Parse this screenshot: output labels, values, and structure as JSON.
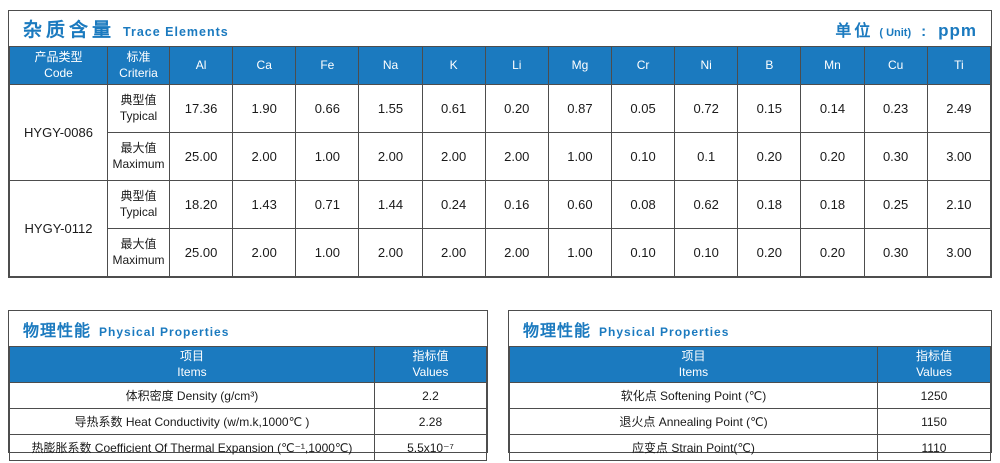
{
  "colors": {
    "header_blue": "#1b7abf",
    "title_blue": "#1b7abf",
    "border_gray": "#4d4d4d"
  },
  "trace_elements": {
    "title_zh": "杂质含量",
    "title_en": "Trace Elements",
    "unit_zh": "单位",
    "unit_en": "( Unit)",
    "unit_colon": ":",
    "unit_value": "ppm",
    "code_header_zh": "产品类型",
    "code_header_en": "Code",
    "criteria_header_zh": "标准",
    "criteria_header_en": "Criteria",
    "elements": [
      "Al",
      "Ca",
      "Fe",
      "Na",
      "K",
      "Li",
      "Mg",
      "Cr",
      "Ni",
      "B",
      "Mn",
      "Cu",
      "Ti"
    ],
    "codes": [
      "HYGY-0086",
      "HYGY-0112"
    ],
    "rows": [
      {
        "criteria_zh": "典型值",
        "criteria_en": "Typical",
        "values": [
          "17.36",
          "1.90",
          "0.66",
          "1.55",
          "0.61",
          "0.20",
          "0.87",
          "0.05",
          "0.72",
          "0.15",
          "0.14",
          "0.23",
          "2.49"
        ]
      },
      {
        "criteria_zh": "最大值",
        "criteria_en": "Maximum",
        "values": [
          "25.00",
          "2.00",
          "1.00",
          "2.00",
          "2.00",
          "2.00",
          "1.00",
          "0.10",
          "0.1",
          "0.20",
          "0.20",
          "0.30",
          "3.00"
        ]
      },
      {
        "criteria_zh": "典型值",
        "criteria_en": "Typical",
        "values": [
          "18.20",
          "1.43",
          "0.71",
          "1.44",
          "0.24",
          "0.16",
          "0.60",
          "0.08",
          "0.62",
          "0.18",
          "0.18",
          "0.25",
          "2.10"
        ]
      },
      {
        "criteria_zh": "最大值",
        "criteria_en": "Maximum",
        "values": [
          "25.00",
          "2.00",
          "1.00",
          "2.00",
          "2.00",
          "2.00",
          "1.00",
          "0.10",
          "0.10",
          "0.20",
          "0.20",
          "0.30",
          "3.00"
        ]
      }
    ]
  },
  "physical_left": {
    "title_zh": "物理性能",
    "title_en": "Physical Properties",
    "items_header_zh": "项目",
    "items_header_en": "Items",
    "values_header_zh": "指标值",
    "values_header_en": "Values",
    "rows": [
      {
        "item": "体积密度 Density (g/cm³)",
        "value": "2.2"
      },
      {
        "item": "导热系数 Heat Conductivity (w/m.k,1000℃ )",
        "value": "2.28"
      },
      {
        "item": "热膨胀系数 Coefficient Of Thermal Expansion (℃⁻¹,1000℃)",
        "value": "5.5x10⁻⁷"
      }
    ]
  },
  "physical_right": {
    "title_zh": "物理性能",
    "title_en": "Physical Properties",
    "items_header_zh": "项目",
    "items_header_en": "Items",
    "values_header_zh": "指标值",
    "values_header_en": "Values",
    "rows": [
      {
        "item": "软化点 Softening Point (℃)",
        "value": "1250"
      },
      {
        "item": "退火点 Annealing Point (℃)",
        "value": "1150"
      },
      {
        "item": "应变点 Strain Point(℃)",
        "value": "1110"
      }
    ]
  }
}
